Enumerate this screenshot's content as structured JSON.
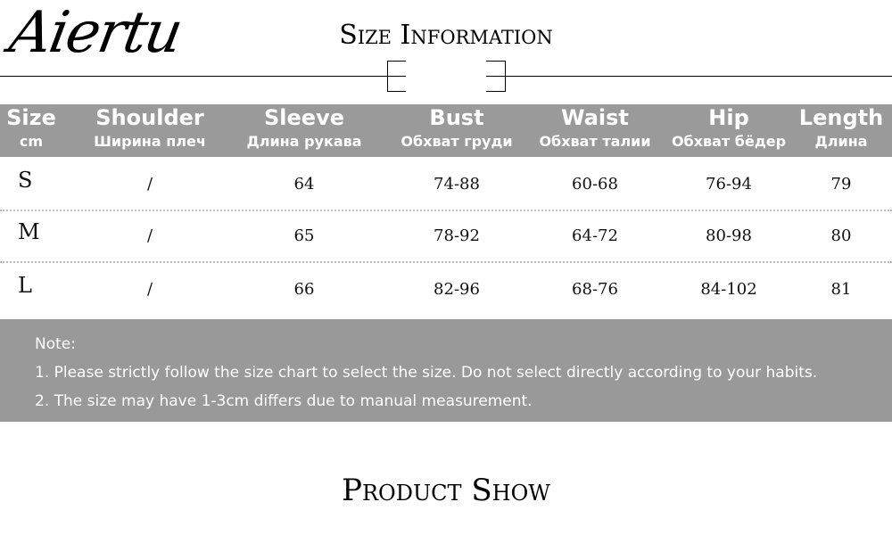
{
  "header": {
    "brand": "Aiertu",
    "title": "Size Information"
  },
  "table": {
    "columns": [
      {
        "name": "Size",
        "sub": "cm"
      },
      {
        "name": "Shoulder",
        "sub": "Ширина плеч"
      },
      {
        "name": "Sleeve",
        "sub": "Длина рукава"
      },
      {
        "name": "Bust",
        "sub": "Обхват груди"
      },
      {
        "name": "Waist",
        "sub": "Обхват талии"
      },
      {
        "name": "Hip",
        "sub": "Обхват бёдер"
      },
      {
        "name": "Length",
        "sub": "Длина"
      }
    ],
    "rows": [
      [
        "S",
        "/",
        "64",
        "74-88",
        "60-68",
        "76-94",
        "79"
      ],
      [
        "M",
        "/",
        "65",
        "78-92",
        "64-72",
        "80-98",
        "80"
      ],
      [
        "L",
        "/",
        "66",
        "82-96",
        "68-76",
        "84-102",
        "81"
      ]
    ]
  },
  "notes": {
    "label": "Note:",
    "items": [
      "1. Please strictly follow the size chart to select the size. Do not select directly according to your habits.",
      "2. The size may have 1-3cm differs due to manual measurement."
    ]
  },
  "footer": {
    "title": "Product Show"
  }
}
